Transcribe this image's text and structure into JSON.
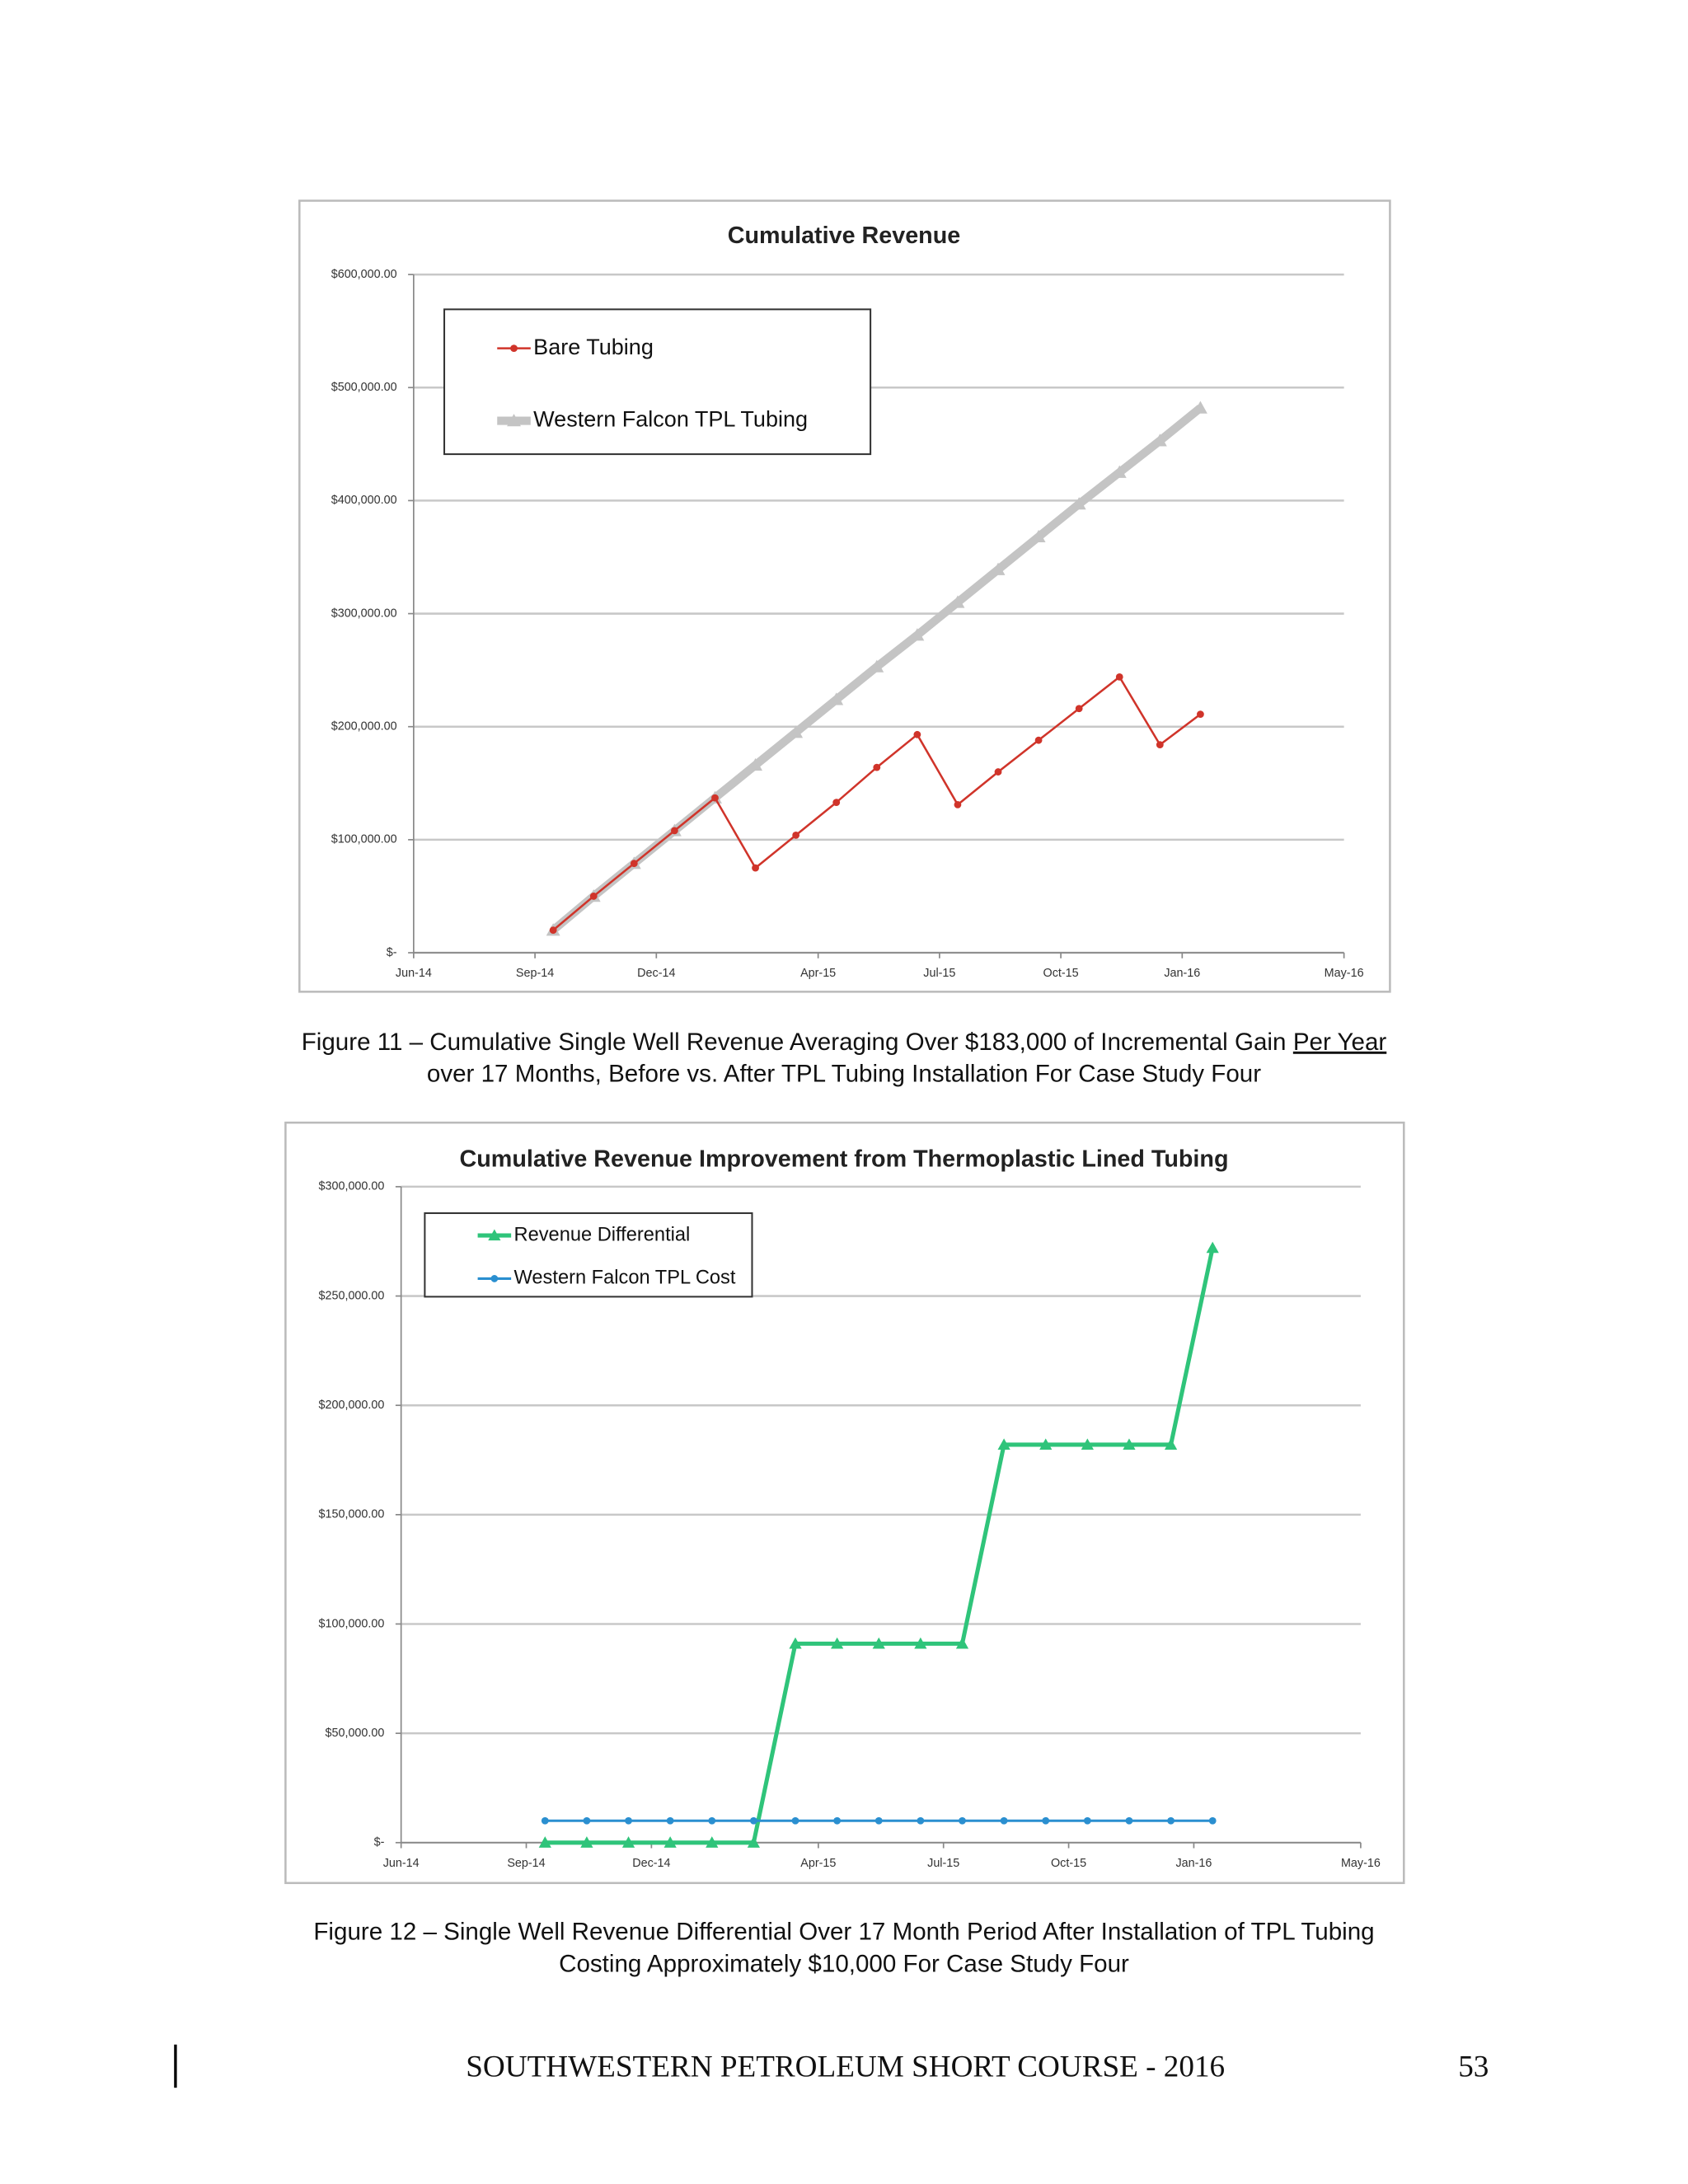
{
  "chart_data": [
    {
      "type": "line",
      "title": "Cumulative Revenue",
      "x": [
        "Sep-14",
        "Oct-14",
        "Nov-14",
        "Dec-14",
        "Jan-15",
        "Feb-15",
        "Mar-15",
        "Apr-15",
        "May-15",
        "Jun-15",
        "Jul-15",
        "Aug-15",
        "Sep-15",
        "Oct-15",
        "Nov-15",
        "Dec-15",
        "Jan-16"
      ],
      "xlim": [
        "Jun-14",
        "May-16"
      ],
      "xticks": [
        "Jun-14",
        "Sep-14",
        "Dec-14",
        "Apr-15",
        "Jul-15",
        "Oct-15",
        "Jan-16",
        "May-16"
      ],
      "ylim": [
        0,
        600000
      ],
      "yticks": [
        {
          "value": 0,
          "label": "$-"
        },
        {
          "value": 100000,
          "label": "$100,000.00"
        },
        {
          "value": 200000,
          "label": "$200,000.00"
        },
        {
          "value": 300000,
          "label": "$300,000.00"
        },
        {
          "value": 400000,
          "label": "$400,000.00"
        },
        {
          "value": 500000,
          "label": "$500,000.00"
        },
        {
          "value": 600000,
          "label": "$600,000.00"
        }
      ],
      "grid": true,
      "legend": "upper left",
      "series": [
        {
          "name": "Western Falcon TPL Tubing",
          "color": "#c4c4c4",
          "marker": "triangle",
          "values": [
            20000,
            50000,
            79000,
            108000,
            137000,
            166000,
            195000,
            224000,
            253000,
            281000,
            310000,
            339000,
            368000,
            397000,
            425000,
            453000,
            482000
          ]
        },
        {
          "name": "Bare Tubing",
          "color": "#d0342a",
          "marker": "circle",
          "values": [
            20000,
            50000,
            79000,
            108000,
            137000,
            75000,
            104000,
            133000,
            164000,
            193000,
            131000,
            160000,
            188000,
            216000,
            244000,
            184000,
            211000
          ]
        }
      ]
    },
    {
      "type": "line",
      "title": "Cumulative Revenue Improvement from Thermoplastic Lined Tubing",
      "x": [
        "Sep-14",
        "Oct-14",
        "Nov-14",
        "Dec-14",
        "Jan-15",
        "Feb-15",
        "Mar-15",
        "Apr-15",
        "May-15",
        "Jun-15",
        "Jul-15",
        "Aug-15",
        "Sep-15",
        "Oct-15",
        "Nov-15",
        "Dec-15",
        "Jan-16"
      ],
      "xlim": [
        "Jun-14",
        "May-16"
      ],
      "xticks": [
        "Jun-14",
        "Sep-14",
        "Dec-14",
        "Apr-15",
        "Jul-15",
        "Oct-15",
        "Jan-16",
        "May-16"
      ],
      "ylim": [
        0,
        300000
      ],
      "yticks": [
        {
          "value": 0,
          "label": "$-"
        },
        {
          "value": 50000,
          "label": "$50,000.00"
        },
        {
          "value": 100000,
          "label": "$100,000.00"
        },
        {
          "value": 150000,
          "label": "$150,000.00"
        },
        {
          "value": 200000,
          "label": "$200,000.00"
        },
        {
          "value": 250000,
          "label": "$250,000.00"
        },
        {
          "value": 300000,
          "label": "$300,000.00"
        }
      ],
      "grid": true,
      "legend": "upper left",
      "series": [
        {
          "name": "Revenue Differential",
          "color": "#2fc47a",
          "marker": "triangle",
          "values": [
            0,
            0,
            0,
            0,
            0,
            0,
            91000,
            91000,
            91000,
            91000,
            91000,
            182000,
            182000,
            182000,
            182000,
            182000,
            272000
          ]
        },
        {
          "name": "Western Falcon TPL Cost",
          "color": "#2a8fd0",
          "marker": "circle",
          "values": [
            10000,
            10000,
            10000,
            10000,
            10000,
            10000,
            10000,
            10000,
            10000,
            10000,
            10000,
            10000,
            10000,
            10000,
            10000,
            10000,
            10000
          ]
        }
      ]
    }
  ],
  "captions": [
    {
      "line1": "Figure 11 – Cumulative Single Well Revenue Averaging Over $183,000 of Incremental Gain",
      "underlined": "Per Year",
      "line2": "over 17 Months, Before vs. After TPL Tubing Installation For Case Study Four"
    },
    {
      "line1": "Figure 12 – Single Well Revenue Differential Over 17 Month Period After Installation of TPL Tubing",
      "line2": "Costing Approximately $10,000 For Case Study Four"
    }
  ],
  "footer": {
    "text": "SOUTHWESTERN PETROLEUM SHORT COURSE - 2016",
    "page": "53"
  }
}
